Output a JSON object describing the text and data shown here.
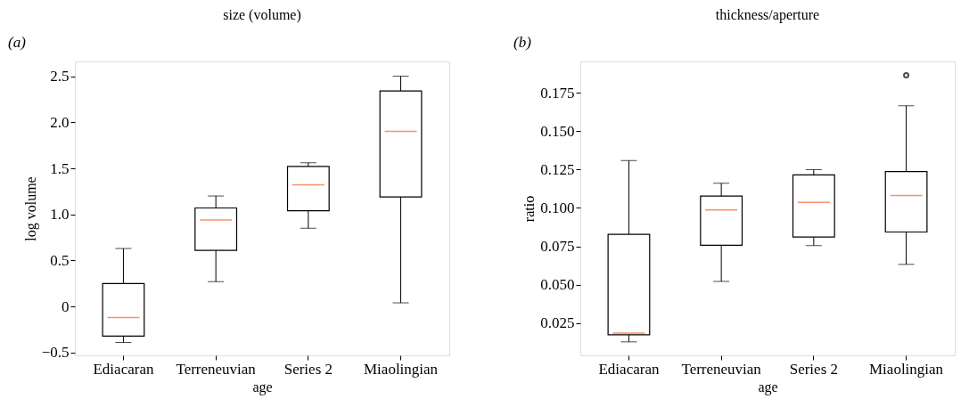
{
  "chart_data": [
    {
      "type": "box",
      "title": "size (volume)",
      "xlabel": "age",
      "ylabel": "log volume",
      "annotations": [
        "(a)"
      ],
      "grid": false,
      "categories": [
        "Ediacaran",
        "Terreneuvian",
        "Series 2",
        "Miaolingian"
      ],
      "boxes": [
        {
          "low": -0.39,
          "q1": -0.32,
          "median": -0.12,
          "q3": 0.25,
          "high": 0.63
        },
        {
          "low": 0.27,
          "q1": 0.61,
          "median": 0.94,
          "q3": 1.07,
          "high": 1.2
        },
        {
          "low": 0.85,
          "q1": 1.04,
          "median": 1.32,
          "q3": 1.52,
          "high": 1.56
        },
        {
          "low": 0.04,
          "q1": 1.19,
          "median": 1.9,
          "q3": 2.34,
          "high": 2.5
        }
      ],
      "ylim": [
        -0.53,
        2.66
      ],
      "yticks": [
        {
          "value": -0.5,
          "label": "−0.5"
        },
        0,
        {
          "value": 0.5,
          "label": "0.5"
        },
        {
          "value": 1,
          "label": "1.0"
        },
        {
          "value": 1.5,
          "label": "1.5"
        },
        {
          "value": 2,
          "label": "2.0"
        },
        {
          "value": 2.5,
          "label": "2.5"
        }
      ]
    },
    {
      "type": "box",
      "title": "thickness/aperture",
      "xlabel": "age",
      "ylabel": "ratio",
      "annotations": [
        "(b)"
      ],
      "grid": false,
      "categories": [
        "Ediacaran",
        "Terreneuvian",
        "Series 2",
        "Miaolingian"
      ],
      "boxes": [
        {
          "low": 0.0127,
          "q1": 0.0173,
          "median": 0.0184,
          "q3": 0.0828,
          "high": 0.1309
        },
        {
          "low": 0.0521,
          "q1": 0.0757,
          "median": 0.0987,
          "q3": 0.1077,
          "high": 0.1161
        },
        {
          "low": 0.0755,
          "q1": 0.081,
          "median": 0.1036,
          "q3": 0.1216,
          "high": 0.1249
        },
        {
          "low": 0.0632,
          "q1": 0.0843,
          "median": 0.1081,
          "q3": 0.1237,
          "high": 0.1666,
          "outliers": [
            0.1865
          ]
        }
      ],
      "ylim": [
        0.0039,
        0.1955
      ],
      "yticks": [
        {
          "value": 0.025,
          "label": "0.025"
        },
        {
          "value": 0.05,
          "label": "0.050"
        },
        {
          "value": 0.075,
          "label": "0.075"
        },
        {
          "value": 0.1,
          "label": "0.100"
        },
        {
          "value": 0.125,
          "label": "0.125"
        },
        {
          "value": 0.15,
          "label": "0.150"
        },
        {
          "value": 0.175,
          "label": "0.175"
        }
      ]
    }
  ]
}
